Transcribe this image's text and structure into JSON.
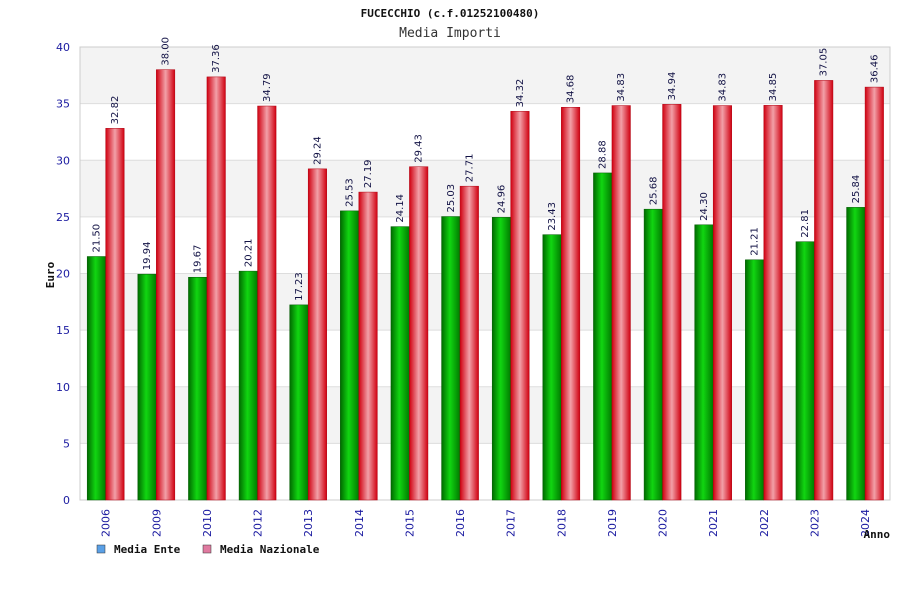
{
  "chart_data": {
    "type": "bar",
    "title": "FUCECCHIO (c.f.01252100480)",
    "subtitle": "Media Importi",
    "ylabel": "Euro",
    "xlabel": "Anno",
    "ylim": [
      0,
      40
    ],
    "yticks": [
      0,
      5,
      10,
      15,
      20,
      25,
      30,
      35,
      40
    ],
    "categories": [
      "2006",
      "2009",
      "2010",
      "2012",
      "2013",
      "2014",
      "2015",
      "2016",
      "2017",
      "2018",
      "2019",
      "2020",
      "2021",
      "2022",
      "2023",
      "2024"
    ],
    "series": [
      {
        "name": "Media Ente",
        "color": "#00aa00",
        "legend_color": "#5aa0e6",
        "values": [
          21.5,
          19.94,
          19.67,
          20.21,
          17.23,
          25.53,
          24.14,
          25.03,
          24.96,
          23.43,
          28.88,
          25.68,
          24.3,
          21.21,
          22.81,
          25.84
        ],
        "labels": [
          "21.50",
          "19.94",
          "19.67",
          "20.21",
          "17.23",
          "25.53",
          "24.14",
          "25.03",
          "24.96",
          "23.43",
          "28.88",
          "25.68",
          "24.30",
          "21.21",
          "22.81",
          "25.84"
        ]
      },
      {
        "name": "Media Nazionale",
        "color": "#e01020",
        "legend_color": "#e07aa0",
        "values": [
          32.82,
          38.0,
          37.36,
          34.79,
          29.24,
          27.19,
          29.43,
          27.71,
          34.32,
          34.68,
          34.83,
          34.94,
          34.83,
          34.85,
          37.05,
          36.46
        ],
        "labels": [
          "32.82",
          "38.00",
          "37.36",
          "34.79",
          "29.24",
          "27.19",
          "29.43",
          "27.71",
          "34.32",
          "34.68",
          "34.83",
          "34.94",
          "34.83",
          "34.85",
          "37.05",
          "36.46"
        ]
      }
    ],
    "grid": true,
    "legend_position": "bottom-left"
  }
}
